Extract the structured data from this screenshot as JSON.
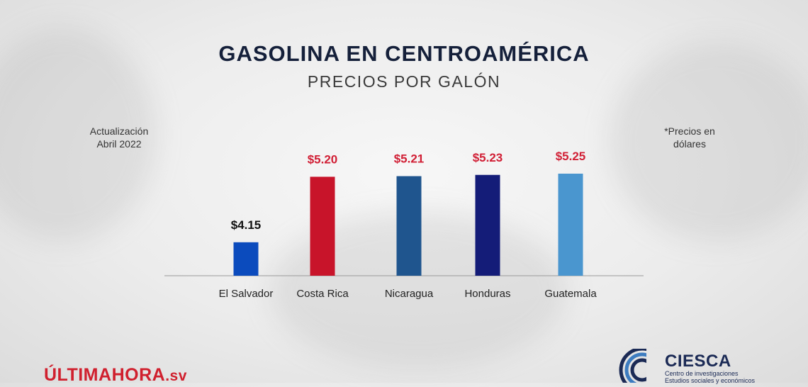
{
  "header": {
    "title": "GASOLINA EN CENTROAMÉRICA",
    "subtitle": "PRECIOS POR GALÓN"
  },
  "notes": {
    "update_line1": "Actualización",
    "update_line2": "Abril 2022",
    "currency_line1": "*Precios en",
    "currency_line2": "dólares"
  },
  "logos": {
    "source_part1": "ÚLTIMA",
    "source_part2": "HORA",
    "source_part3": ".sv",
    "ciesca_name": "CIESCA",
    "ciesca_line1": "Centro de investigaciones",
    "ciesca_line2": "Estudios sociales y económicos"
  },
  "chart_data": {
    "type": "bar",
    "title": "GASOLINA EN CENTROAMÉRICA",
    "subtitle": "PRECIOS POR GALÓN",
    "categories": [
      "El Salvador",
      "Costa Rica",
      "Nicaragua",
      "Honduras",
      "Guatemala"
    ],
    "values": [
      4.15,
      5.2,
      5.21,
      5.23,
      5.25
    ],
    "labels": [
      "$4.15",
      "$5.20",
      "$5.21",
      "$5.23",
      "$5.25"
    ],
    "bar_colors": [
      "#0b4bbd",
      "#c8142a",
      "#1f558e",
      "#141c78",
      "#4a96cf"
    ],
    "label_colors": [
      "#111111",
      "#d11f35",
      "#d11f35",
      "#d11f35",
      "#d11f35"
    ],
    "baseline_color": "#9a9a9a",
    "ylim": [
      4.0,
      5.25
    ],
    "grid": false,
    "legend": false
  }
}
